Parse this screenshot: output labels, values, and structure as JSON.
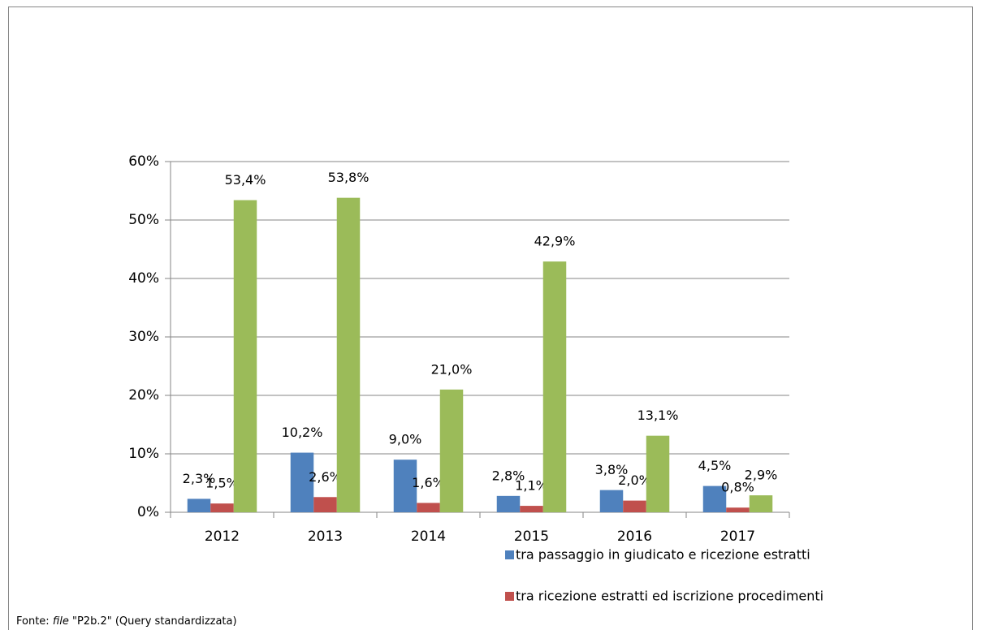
{
  "chart_data": {
    "type": "bar",
    "categories": [
      "2012",
      "2013",
      "2014",
      "2015",
      "2016",
      "2017"
    ],
    "series": [
      {
        "name": "tra passaggio in giudicato e ricezione estratti",
        "color": "#4f81bd",
        "values": [
          2.3,
          10.2,
          9.0,
          2.8,
          3.8,
          4.5
        ],
        "value_labels": [
          "2,3%",
          "10,2%",
          "9,0%",
          "2,8%",
          "3,8%",
          "4,5%"
        ]
      },
      {
        "name": "tra ricezione estratti ed iscrizione procedimenti",
        "color": "#c0504d",
        "values": [
          1.5,
          2.6,
          1.6,
          1.1,
          2.0,
          0.8
        ],
        "value_labels": [
          "1,5%",
          "2,6%",
          "1,6%",
          "1,1%",
          "2,0%",
          "0,8%"
        ]
      },
      {
        "color": "#9bbb59",
        "values": [
          53.4,
          53.8,
          21.0,
          42.9,
          13.1,
          2.9
        ],
        "value_labels": [
          "53,4%",
          "53,8%",
          "21,0%",
          "42,9%",
          "13,1%",
          "2,9%"
        ]
      }
    ],
    "ylim": [
      0,
      60
    ],
    "yticks": [
      {
        "value": 0,
        "label": "0%"
      },
      {
        "value": 10,
        "label": "10%"
      },
      {
        "value": 20,
        "label": "20%"
      },
      {
        "value": 30,
        "label": "30%"
      },
      {
        "value": 40,
        "label": "40%"
      },
      {
        "value": 50,
        "label": "50%"
      },
      {
        "value": 60,
        "label": "60%"
      }
    ],
    "grid": true
  },
  "source": {
    "prefix": "Fonte: ",
    "emphasis": "file",
    "rest": " \"P2b.2\" (Query standardizzata)"
  }
}
